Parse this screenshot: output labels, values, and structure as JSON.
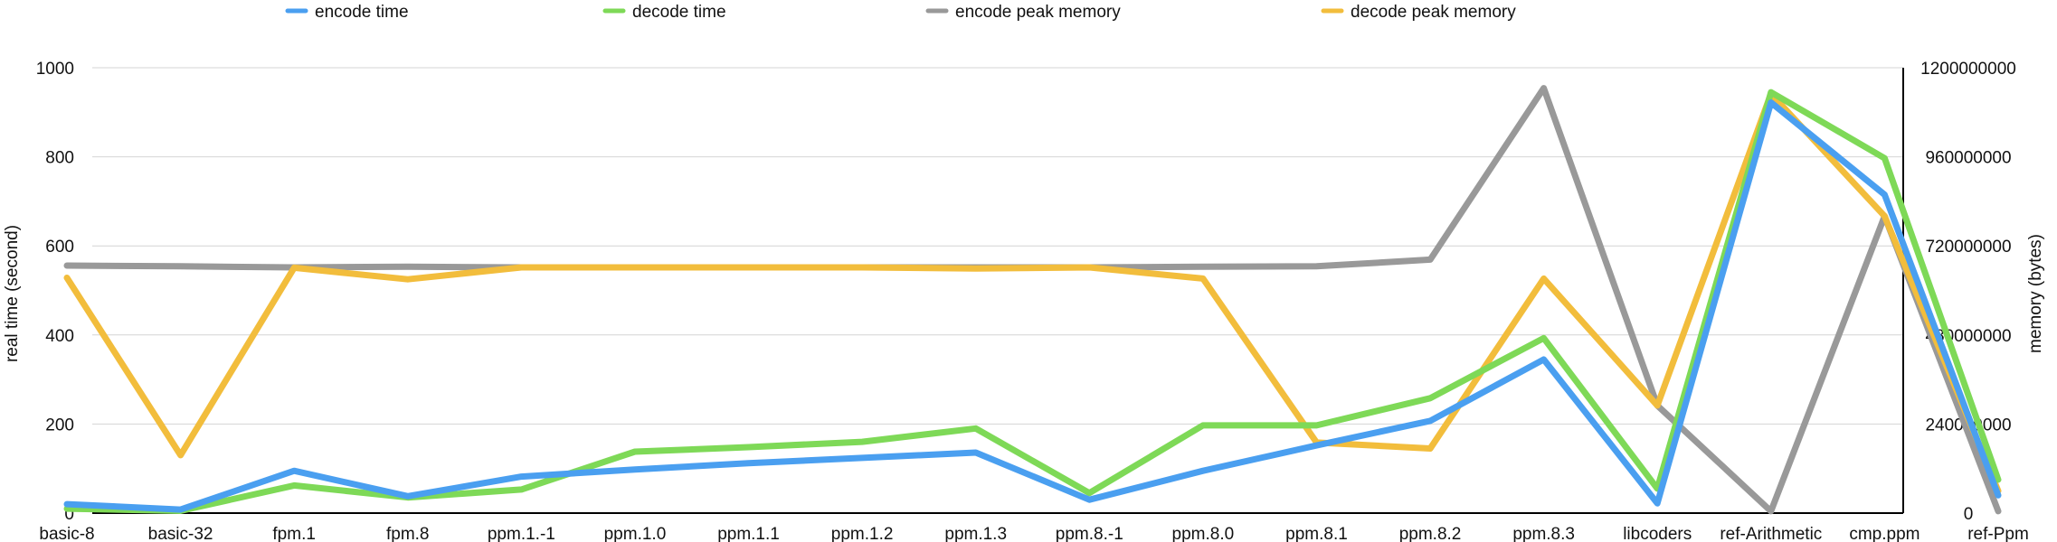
{
  "chart_data": {
    "type": "line",
    "categories": [
      "basic-8",
      "basic-32",
      "fpm.1",
      "fpm.8",
      "ppm.1.-1",
      "ppm.1.0",
      "ppm.1.1",
      "ppm.1.2",
      "ppm.1.3",
      "ppm.8.-1",
      "ppm.8.0",
      "ppm.8.1",
      "ppm.8.2",
      "ppm.8.3",
      "libcoders",
      "ref-Arithmetic",
      "cmp.ppm",
      "ref-Ppm"
    ],
    "left_axis": {
      "label": "real time (second)",
      "range": [
        0,
        1000
      ],
      "ticks": [
        "0",
        "200",
        "400",
        "600",
        "800",
        "1000"
      ]
    },
    "right_axis": {
      "label": "memory (bytes)",
      "range": [
        0,
        1200000000
      ],
      "ticks": [
        "0",
        "240000000",
        "480000000",
        "720000000",
        "960000000",
        "1200000000"
      ]
    },
    "grid": true,
    "legend_position": "top",
    "series": [
      {
        "name": "encode time",
        "axis": "left",
        "color": "#4a9ff0",
        "values": [
          20,
          8,
          95,
          38,
          82,
          98,
          112,
          124,
          136,
          30,
          95,
          152,
          207,
          345,
          22,
          922,
          715,
          40
        ]
      },
      {
        "name": "decode time",
        "axis": "left",
        "color": "#7ed957",
        "values": [
          10,
          5,
          62,
          35,
          53,
          138,
          148,
          160,
          190,
          45,
          197,
          197,
          258,
          393,
          55,
          945,
          797,
          75
        ]
      },
      {
        "name": "encode peak memory",
        "axis": "right",
        "color": "#999999",
        "values": [
          667000000,
          665000000,
          662000000,
          664000000,
          662000000,
          662000000,
          662000000,
          662000000,
          662000000,
          662000000,
          664000000,
          665000000,
          683000000,
          1145000000,
          290000000,
          5000000,
          800000000,
          5000000
        ]
      },
      {
        "name": "decode peak memory",
        "axis": "right",
        "color": "#f2bd3c",
        "values": [
          634000000,
          156000000,
          661000000,
          630000000,
          662000000,
          662000000,
          662000000,
          662000000,
          659000000,
          662000000,
          632000000,
          190000000,
          174000000,
          632000000,
          290000000,
          1130000000,
          800000000,
          60000000
        ]
      }
    ]
  }
}
